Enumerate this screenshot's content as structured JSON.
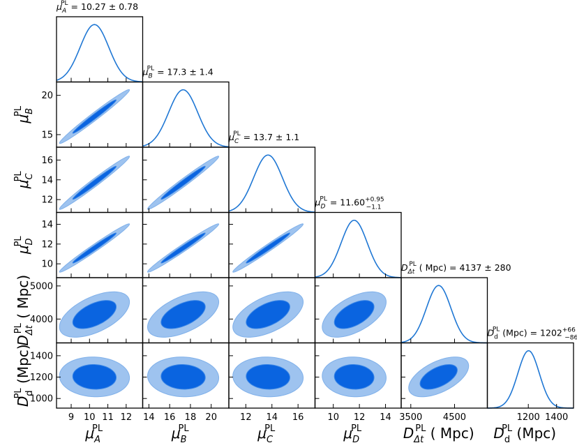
{
  "chart_data": {
    "type": "corner",
    "colors": {
      "line": "#1f77d4",
      "inner": "#0a64e0",
      "outer": "#9ec3ef",
      "outer_edge": "#7fb0ea",
      "inner_edge": "#3a86e6"
    },
    "parameters": [
      {
        "id": "A",
        "sym": "μ",
        "sub": "A",
        "sub_italic": true,
        "unit": "",
        "label": "μ_A^PL",
        "mean": 10.27,
        "sigma": 0.78,
        "title_rhs": "= 10.27 ± 0.78",
        "range": [
          8.2,
          12.9
        ],
        "ticks": [
          9,
          10,
          11,
          12
        ],
        "ticklabels": [
          "9",
          "10",
          "11",
          "12"
        ]
      },
      {
        "id": "B",
        "sym": "μ",
        "sub": "B",
        "sub_italic": true,
        "unit": "",
        "label": "μ_B^PL",
        "mean": 17.3,
        "sigma": 1.4,
        "title_rhs": "= 17.3 ± 1.4",
        "range": [
          13.4,
          21.7
        ],
        "ticks": [
          14,
          16,
          18,
          20
        ],
        "ticklabels": [
          "14",
          "16",
          "18",
          "20"
        ]
      },
      {
        "id": "C",
        "sym": "μ",
        "sub": "C",
        "sub_italic": true,
        "unit": "",
        "label": "μ_C^PL",
        "mean": 13.7,
        "sigma": 1.1,
        "title_rhs": "= 13.7 ± 1.1",
        "range": [
          10.7,
          17.3
        ],
        "ticks": [
          12,
          14,
          16
        ],
        "ticklabels": [
          "12",
          "14",
          "16"
        ]
      },
      {
        "id": "D",
        "sym": "μ",
        "sub": "D",
        "sub_italic": true,
        "unit": "",
        "label": "μ_D^PL",
        "mean": 11.6,
        "sigma": 1.0,
        "title_rhs": "= 11.60",
        "title_sup": "+0.95",
        "title_sub": "−1.1",
        "range": [
          8.6,
          15.2
        ],
        "ticks": [
          10,
          12,
          14
        ],
        "ticklabels": [
          "10",
          "12",
          "14"
        ]
      },
      {
        "id": "Ddt",
        "sym": "D",
        "sub": "Δt",
        "sub_italic": true,
        "unit": "( Mpc)",
        "label": "D_Δt^PL (Mpc)",
        "mean": 4137,
        "sigma": 280,
        "title_rhs": "( Mpc) = 4137 ± 280",
        "range": [
          3280,
          5250
        ],
        "ticks": [
          3500,
          4500
        ],
        "ticklabels": [
          "3500",
          "4500"
        ],
        "row_ticks": [
          4000,
          5000
        ],
        "row_ticklabels": [
          "4000",
          "5000"
        ]
      },
      {
        "id": "Dd",
        "sym": "D",
        "sub": "d",
        "sub_italic": false,
        "unit": "(Mpc)",
        "label": "D_d^PL (Mpc)",
        "mean": 1202,
        "sigma": 76,
        "title_rhs": "(Mpc) = 1202",
        "title_sup": "+66",
        "title_sub": "−86",
        "range": [
          910,
          1520
        ],
        "ticks": [
          1200,
          1400
        ],
        "ticklabels": [
          "1200",
          "1400"
        ],
        "row_ticks": [
          1000,
          1200,
          1400
        ],
        "row_ticklabels": [
          "1000",
          "1200",
          "1400"
        ]
      }
    ],
    "row_ticks_mu": {
      "B": {
        "ticks": [
          15,
          20
        ],
        "ticklabels": [
          "15",
          "20"
        ]
      },
      "C": {
        "ticks": [
          12,
          14,
          16
        ],
        "ticklabels": [
          "12",
          "14",
          "16"
        ]
      },
      "D": {
        "ticks": [
          10,
          12,
          14
        ],
        "ticklabels": [
          "10",
          "12",
          "14"
        ]
      }
    },
    "correlations": {
      "mu_mu": 0.985,
      "mu_Ddt": 0.55,
      "mu_Dd": -0.05
    },
    "contour_levels_sigma": [
      1,
      2
    ],
    "superscript": "PL"
  }
}
